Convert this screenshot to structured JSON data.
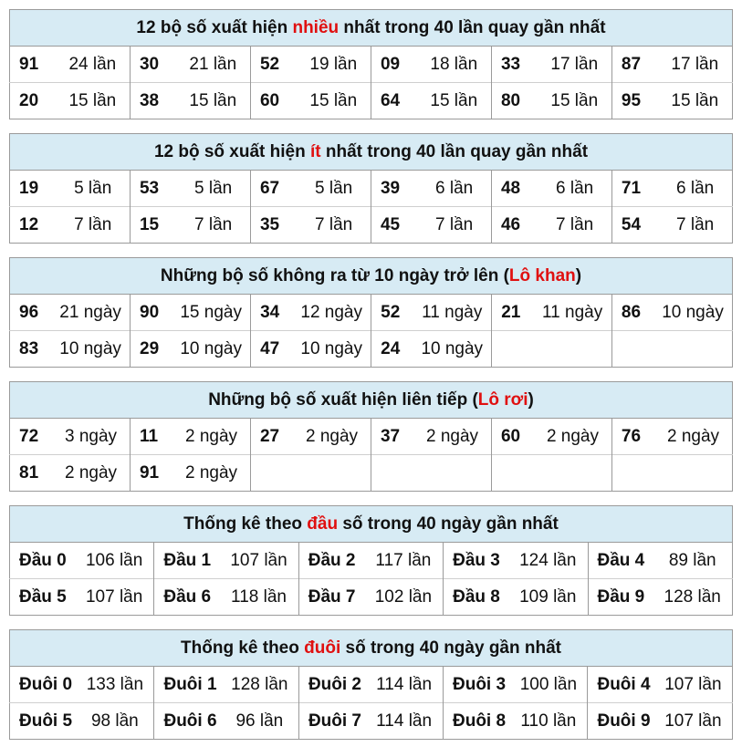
{
  "tables": [
    {
      "title": {
        "pre": "12 bộ số xuất hiện ",
        "hl": "nhiều",
        "post": " nhất trong 40 lần quay gần nhất"
      },
      "cols": 6,
      "rows": [
        [
          [
            "91",
            "24 lần"
          ],
          [
            "30",
            "21 lần"
          ],
          [
            "52",
            "19 lần"
          ],
          [
            "09",
            "18 lần"
          ],
          [
            "33",
            "17 lần"
          ],
          [
            "87",
            "17 lần"
          ]
        ],
        [
          [
            "20",
            "15 lần"
          ],
          [
            "38",
            "15 lần"
          ],
          [
            "60",
            "15 lần"
          ],
          [
            "64",
            "15 lần"
          ],
          [
            "80",
            "15 lần"
          ],
          [
            "95",
            "15 lần"
          ]
        ]
      ]
    },
    {
      "title": {
        "pre": "12 bộ số xuất hiện ",
        "hl": "ít",
        "post": " nhất trong 40 lần quay gần nhất"
      },
      "cols": 6,
      "rows": [
        [
          [
            "19",
            "5 lần"
          ],
          [
            "53",
            "5 lần"
          ],
          [
            "67",
            "5 lần"
          ],
          [
            "39",
            "6 lần"
          ],
          [
            "48",
            "6 lần"
          ],
          [
            "71",
            "6 lần"
          ]
        ],
        [
          [
            "12",
            "7 lần"
          ],
          [
            "15",
            "7 lần"
          ],
          [
            "35",
            "7 lần"
          ],
          [
            "45",
            "7 lần"
          ],
          [
            "46",
            "7 lần"
          ],
          [
            "54",
            "7 lần"
          ]
        ]
      ]
    },
    {
      "title": {
        "pre": "Những bộ số không ra từ 10 ngày trở lên (",
        "hl": "Lô khan",
        "post": ")"
      },
      "cols": 6,
      "rows": [
        [
          [
            "96",
            "21 ngày"
          ],
          [
            "90",
            "15 ngày"
          ],
          [
            "34",
            "12 ngày"
          ],
          [
            "52",
            "11 ngày"
          ],
          [
            "21",
            "11 ngày"
          ],
          [
            "86",
            "10 ngày"
          ]
        ],
        [
          [
            "83",
            "10 ngày"
          ],
          [
            "29",
            "10 ngày"
          ],
          [
            "47",
            "10 ngày"
          ],
          [
            "24",
            "10 ngày"
          ]
        ]
      ]
    },
    {
      "title": {
        "pre": "Những bộ số xuất hiện liên tiếp (",
        "hl": "Lô rơi",
        "post": ")"
      },
      "cols": 6,
      "rows": [
        [
          [
            "72",
            "3 ngày"
          ],
          [
            "11",
            "2 ngày"
          ],
          [
            "27",
            "2 ngày"
          ],
          [
            "37",
            "2 ngày"
          ],
          [
            "60",
            "2 ngày"
          ],
          [
            "76",
            "2 ngày"
          ]
        ],
        [
          [
            "81",
            "2 ngày"
          ],
          [
            "91",
            "2 ngày"
          ]
        ]
      ]
    },
    {
      "title": {
        "pre": "Thống kê theo ",
        "hl": "đầu",
        "post": " số trong 40 ngày gần nhất"
      },
      "cols": 5,
      "rows": [
        [
          [
            "Đầu 0",
            "106 lần"
          ],
          [
            "Đầu 1",
            "107 lần"
          ],
          [
            "Đầu 2",
            "117 lần"
          ],
          [
            "Đầu 3",
            "124 lần"
          ],
          [
            "Đầu 4",
            "89 lần"
          ]
        ],
        [
          [
            "Đầu 5",
            "107 lần"
          ],
          [
            "Đầu 6",
            "118 lần"
          ],
          [
            "Đầu 7",
            "102 lần"
          ],
          [
            "Đầu 8",
            "109 lần"
          ],
          [
            "Đầu 9",
            "128 lần"
          ]
        ]
      ]
    },
    {
      "title": {
        "pre": "Thống kê theo ",
        "hl": "đuôi",
        "post": " số trong 40 ngày gần nhất"
      },
      "cols": 5,
      "rows": [
        [
          [
            "Đuôi 0",
            "133 lần"
          ],
          [
            "Đuôi 1",
            "128 lần"
          ],
          [
            "Đuôi 2",
            "114 lần"
          ],
          [
            "Đuôi 3",
            "100 lần"
          ],
          [
            "Đuôi 4",
            "107 lần"
          ]
        ],
        [
          [
            "Đuôi 5",
            "98 lần"
          ],
          [
            "Đuôi 6",
            "96 lần"
          ],
          [
            "Đuôi 7",
            "114 lần"
          ],
          [
            "Đuôi 8",
            "110 lần"
          ],
          [
            "Đuôi 9",
            "107 lần"
          ]
        ]
      ]
    }
  ],
  "colors": {
    "header_bg": "#d7ebf4",
    "highlight": "#e01010"
  }
}
